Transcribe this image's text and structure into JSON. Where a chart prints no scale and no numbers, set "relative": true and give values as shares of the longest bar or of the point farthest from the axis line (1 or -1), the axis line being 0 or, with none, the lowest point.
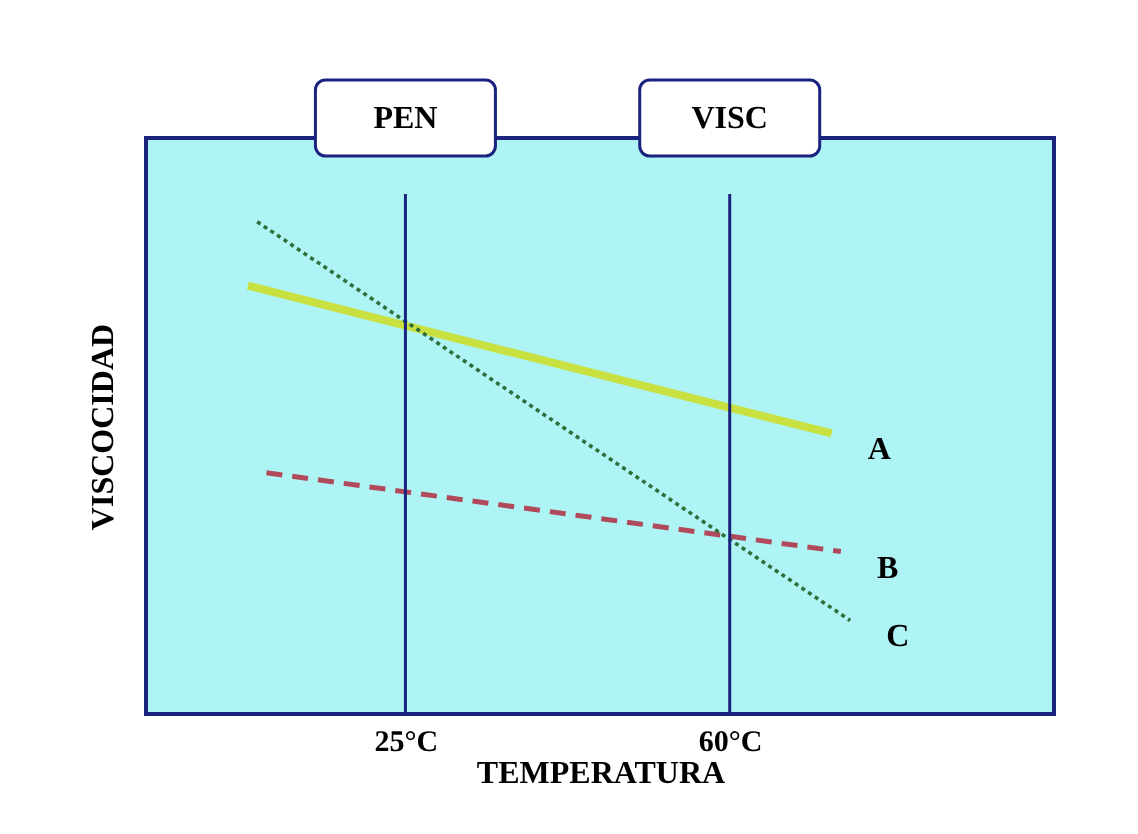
{
  "chart_data": {
    "type": "line",
    "relative": true,
    "xlabel": "TEMPERATURA",
    "ylabel": "VISCOCIDAD",
    "xlim": [
      -3,
      95
    ],
    "xticks": [
      {
        "value": 25,
        "label": "25°C"
      },
      {
        "value": 60,
        "label": "60°C"
      }
    ],
    "grid": false,
    "marker": "none",
    "series": [
      {
        "name": "A",
        "color": "#c8e040",
        "line_style": "solid",
        "x": [
          8,
          71
        ],
        "values": [
          0.87,
          0.57
        ]
      },
      {
        "name": "B",
        "color": "#b04a5a",
        "line_style": "dashed",
        "x": [
          10,
          72
        ],
        "values": [
          0.49,
          0.33
        ]
      },
      {
        "name": "C",
        "color": "#2e6e3a",
        "line_style": "dotted",
        "x": [
          9,
          73
        ],
        "values": [
          1,
          0.19
        ]
      }
    ],
    "ref_lines": [
      {
        "axis": "x",
        "value": 25,
        "label": "PEN",
        "color": "#1a237e"
      },
      {
        "axis": "x",
        "value": 60,
        "label": "VISC",
        "color": "#1a237e"
      }
    ]
  }
}
